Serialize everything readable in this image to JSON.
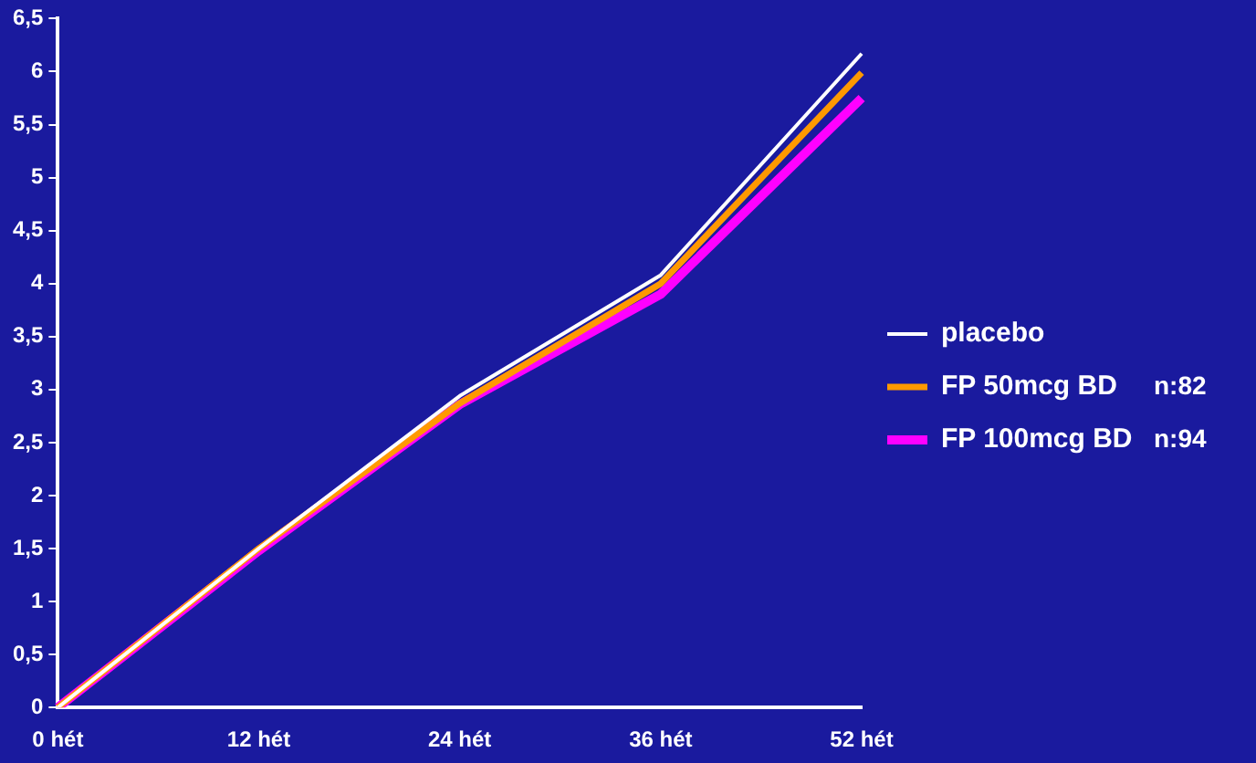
{
  "chart_data": {
    "type": "line",
    "categories": [
      "0 hét",
      "12 hét",
      "24 hét",
      "36 hét",
      "52 hét"
    ],
    "series": [
      {
        "name": "placebo",
        "color": "#ffffff",
        "values": [
          0,
          1.5,
          2.94,
          4.08,
          6.17
        ]
      },
      {
        "name": "FP 50mcg BD",
        "color": "#ff9900",
        "values": [
          0,
          1.5,
          2.87,
          4.0,
          5.99
        ]
      },
      {
        "name": "FP 100mcg BD",
        "color": "#ff00ff",
        "values": [
          0,
          1.48,
          2.86,
          3.9,
          5.75
        ]
      }
    ],
    "ylim": [
      0,
      6.5
    ],
    "yticks": [
      0,
      {
        "value": 0.5,
        "label": "0,5"
      },
      1,
      {
        "value": 1.5,
        "label": "1,5"
      },
      2,
      {
        "value": 2.5,
        "label": "2,5"
      },
      3,
      {
        "value": 3.5,
        "label": "3,5"
      },
      4,
      {
        "value": 4.5,
        "label": "4,5"
      },
      5,
      {
        "value": 5.5,
        "label": "5,5"
      },
      6,
      {
        "value": 6.5,
        "label": "6,5"
      }
    ],
    "annotations": [
      "n:82",
      "n:94"
    ],
    "legend": "right",
    "grid": false,
    "marker": "none",
    "line_style": "solid"
  }
}
